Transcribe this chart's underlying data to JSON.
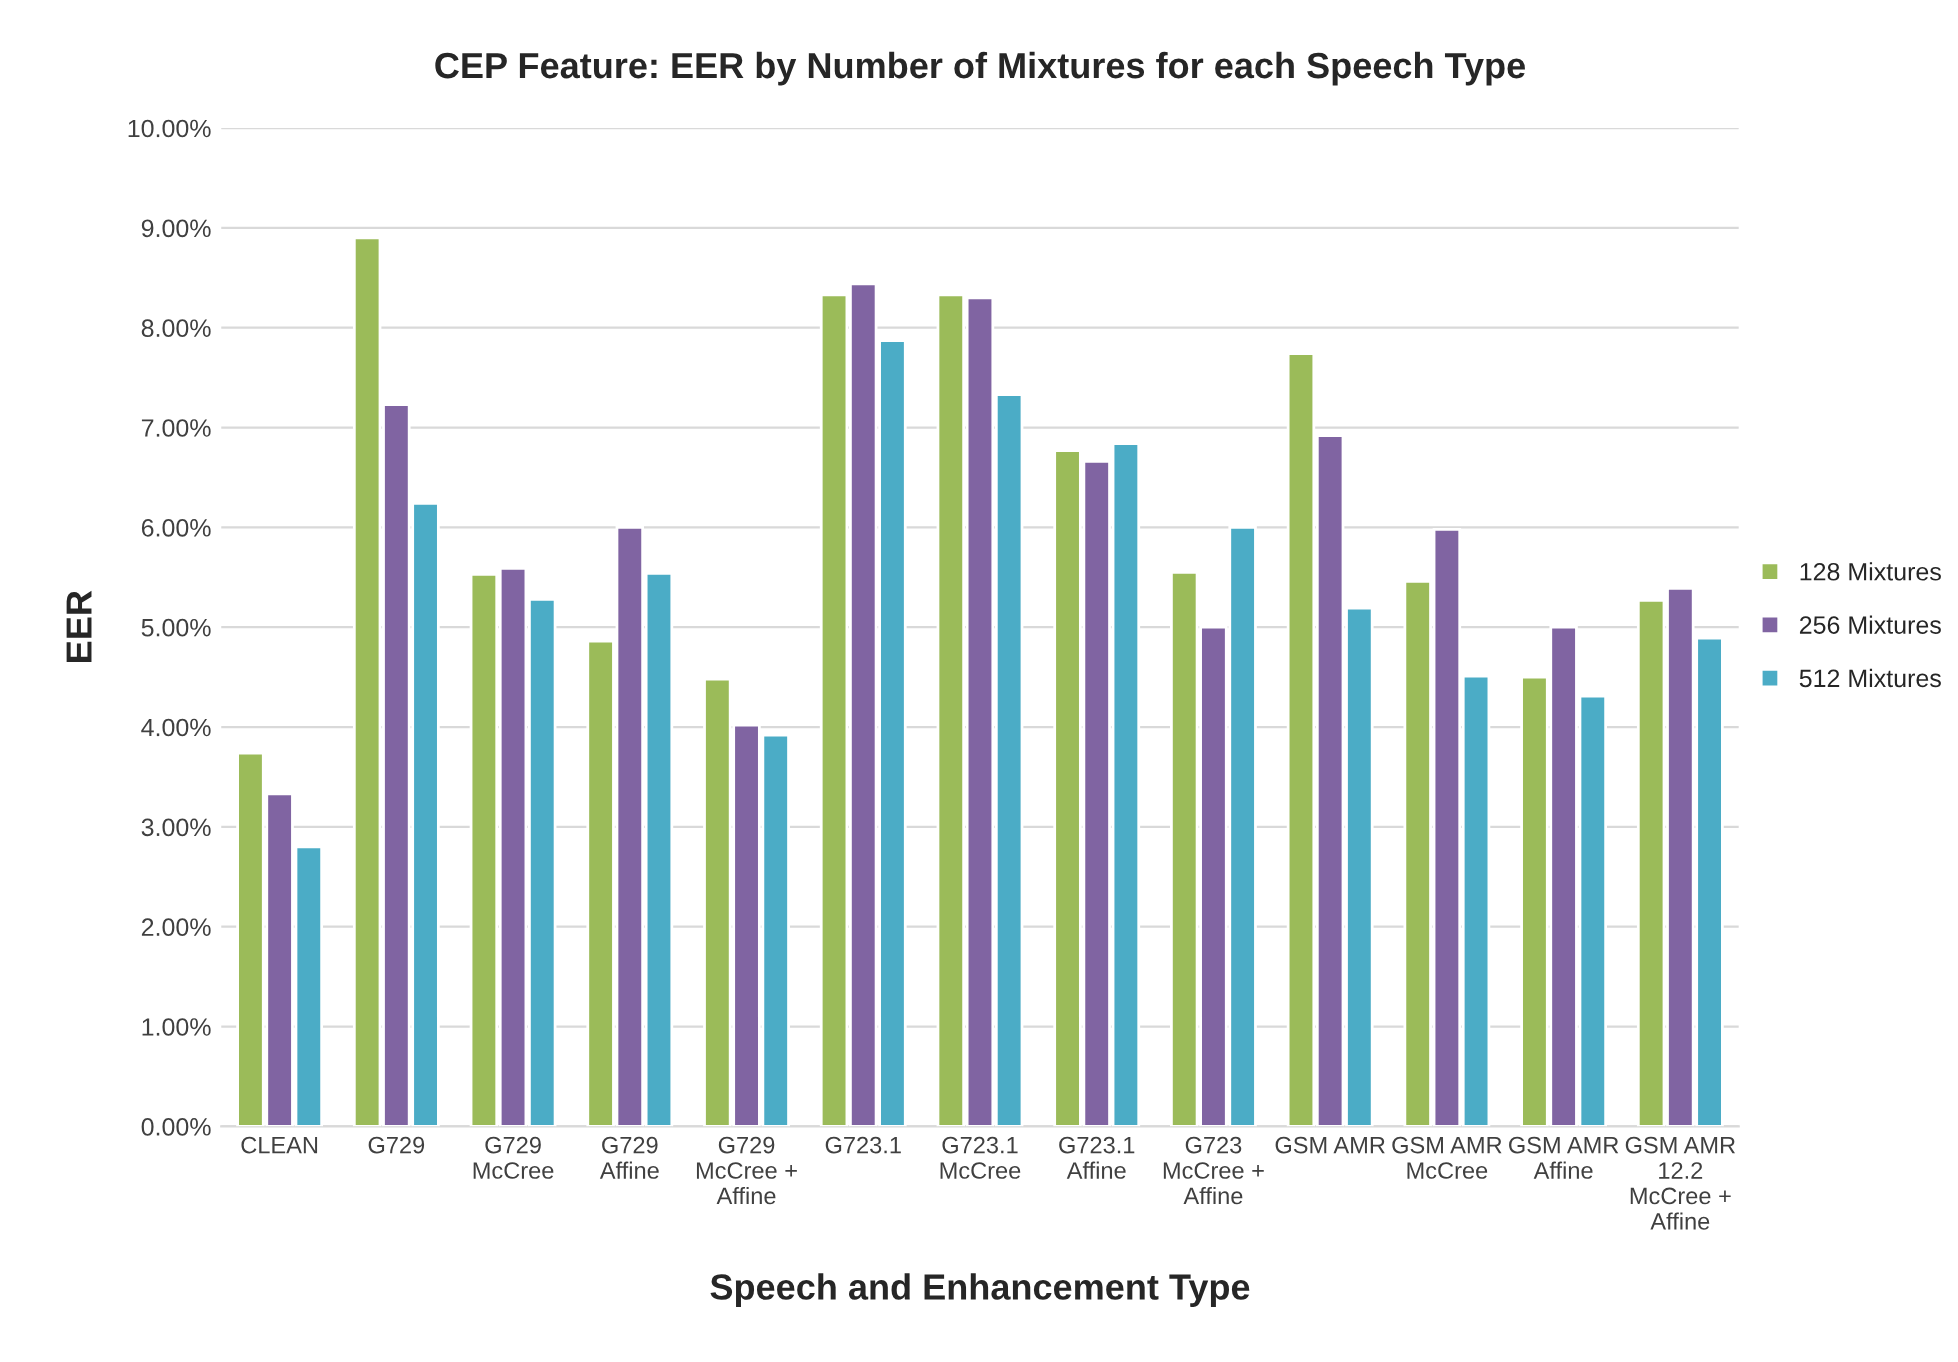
{
  "chart_data": {
    "type": "bar",
    "title": "CEP Feature: EER by Number of Mixtures for each Speech Type",
    "xlabel": "Speech and Enhancement Type",
    "ylabel": "EER",
    "categories": [
      "CLEAN",
      "G729",
      "G729\nMcCree",
      "G729\nAffine",
      "G729\nMcCree +\nAffine",
      "G723.1",
      "G723.1\nMcCree",
      "G723.1\nAffine",
      "G723\nMcCree +\nAffine",
      "GSM AMR",
      "GSM AMR\nMcCree",
      "GSM AMR\nAffine",
      "GSM AMR\n12.2\nMcCree +\nAffine"
    ],
    "series": [
      {
        "name": "128 Mixtures",
        "color": "#9bbb59",
        "values": [
          3.74,
          8.9,
          5.53,
          4.86,
          4.48,
          8.33,
          8.33,
          6.77,
          5.55,
          7.74,
          5.46,
          4.5,
          5.27
        ]
      },
      {
        "name": "256 Mixtures",
        "color": "#8064a2",
        "values": [
          3.33,
          7.23,
          5.59,
          6.0,
          4.02,
          8.44,
          8.3,
          6.66,
          5.0,
          6.92,
          5.98,
          5.0,
          5.39
        ]
      },
      {
        "name": "512 Mixtures",
        "color": "#4bacc6",
        "values": [
          2.8,
          6.24,
          5.28,
          5.54,
          3.92,
          7.87,
          7.33,
          6.84,
          6.0,
          5.19,
          4.51,
          4.31,
          4.89
        ]
      }
    ],
    "ylim": [
      0,
      10
    ],
    "yticks": [
      {
        "value": 0,
        "label": "0.00%"
      },
      {
        "value": 1,
        "label": "1.00%"
      },
      {
        "value": 2,
        "label": "2.00%"
      },
      {
        "value": 3,
        "label": "3.00%"
      },
      {
        "value": 4,
        "label": "4.00%"
      },
      {
        "value": 5,
        "label": "5.00%"
      },
      {
        "value": 6,
        "label": "6.00%"
      },
      {
        "value": 7,
        "label": "7.00%"
      },
      {
        "value": 8,
        "label": "8.00%"
      },
      {
        "value": 9,
        "label": "9.00%"
      },
      {
        "value": 10,
        "label": "10.00%"
      }
    ],
    "grid": "y",
    "legend": "right"
  }
}
